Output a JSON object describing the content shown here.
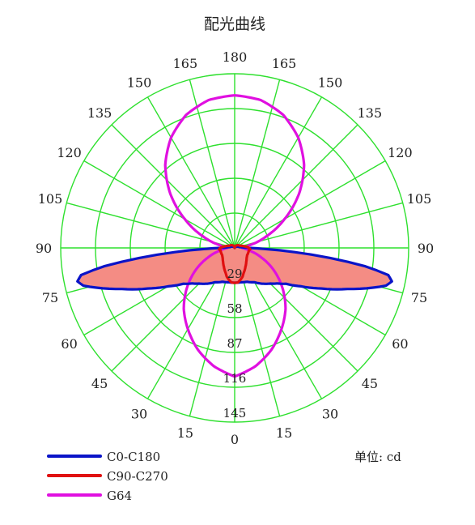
{
  "chart_data": {
    "type": "polar",
    "title": "配光曲线",
    "unit": "单位: cd",
    "rings": [
      29,
      58,
      87,
      116,
      145
    ],
    "rmax": 145,
    "grid": true,
    "legend_position": "bottom-left",
    "angle_labels": {
      "left": [
        "0",
        "15",
        "30",
        "45",
        "60",
        "75",
        "90",
        "105",
        "120",
        "135",
        "150",
        "165",
        "180"
      ],
      "right": [
        "15",
        "30",
        "45",
        "60",
        "75",
        "90",
        "105",
        "120",
        "135",
        "150",
        "165"
      ]
    },
    "colors": {
      "grid": "#2ee02e",
      "fill": "#f48c84",
      "C0-C180": "#0a14c8",
      "C90-C270": "#e01010",
      "G64": "#e010e0"
    },
    "series": [
      {
        "name": "C0-C180",
        "symmetric": true,
        "theta": [
          0,
          10,
          20,
          30,
          40,
          45,
          50,
          55,
          60,
          65,
          70,
          74,
          76,
          78,
          80,
          82,
          84,
          86,
          88,
          90,
          92,
          95,
          100,
          110,
          120,
          150,
          180
        ],
        "r": [
          29,
          29,
          30,
          33,
          39,
          42,
          46,
          52,
          64,
          80,
          100,
          120,
          130,
          134,
          130,
          110,
          80,
          50,
          25,
          12,
          8,
          6,
          4,
          3,
          2,
          1,
          0
        ]
      },
      {
        "name": "C90-C270",
        "symmetric": true,
        "theta": [
          0,
          5,
          10,
          15,
          20,
          25,
          30,
          40,
          50,
          60,
          70,
          80,
          85,
          90,
          95,
          100,
          110,
          180
        ],
        "r": [
          29,
          29,
          27,
          25,
          22,
          20,
          18,
          15,
          13,
          12,
          12,
          12,
          13,
          12,
          10,
          8,
          5,
          0
        ]
      },
      {
        "name": "G64",
        "symmetric": true,
        "theta": [
          0,
          10,
          20,
          30,
          40,
          50,
          60,
          70,
          80,
          90,
          100,
          110,
          120,
          130,
          140,
          150,
          160,
          170,
          180
        ],
        "r": [
          107,
          100,
          90,
          78,
          66,
          52,
          38,
          24,
          12,
          6,
          12,
          28,
          48,
          70,
          90,
          106,
          118,
          125,
          127
        ]
      }
    ]
  }
}
